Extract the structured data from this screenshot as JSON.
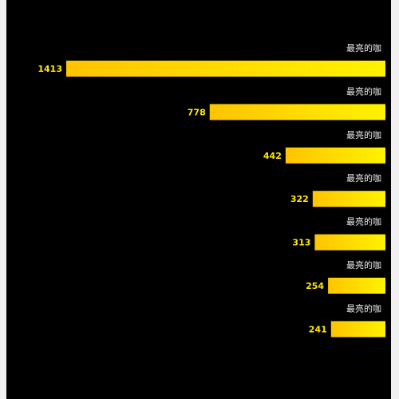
{
  "chart_data": {
    "type": "hbar",
    "categories": [
      "最亮的咖",
      "最亮的咖",
      "最亮的咖",
      "最亮的咖",
      "最亮的咖",
      "最亮的咖",
      "最亮的咖"
    ],
    "values": [
      1413,
      778,
      442,
      322,
      313,
      254,
      241
    ],
    "gradient": [
      "#ffc400",
      "#fff200"
    ],
    "label_color": "#ffe800",
    "category_color": "#e8e8e8",
    "background": "#000000"
  }
}
